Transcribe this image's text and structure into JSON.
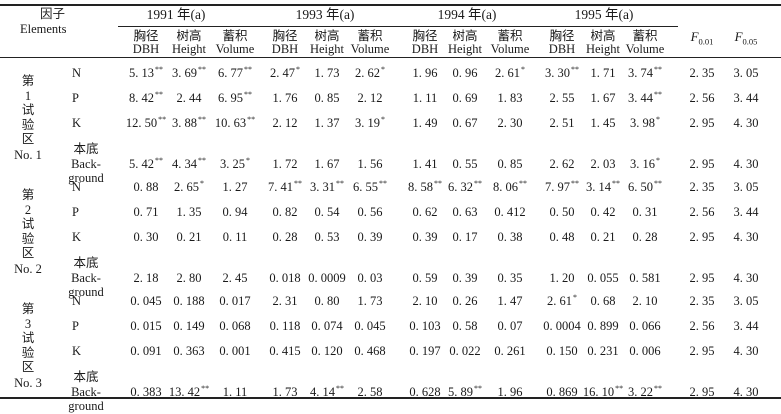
{
  "header": {
    "factor_cn": "因子",
    "factor_en": "Elements",
    "years": [
      "1991 年(a)",
      "1993 年(a)",
      "1994 年(a)",
      "1995 年(a)"
    ],
    "subcols": [
      "胸径",
      "树高",
      "蓄积"
    ],
    "subcols_en": [
      "DBH",
      "Height",
      "Volume"
    ],
    "f01": "F",
    "f01_sub": "0.01",
    "f05": "F",
    "f05_sub": "0.05"
  },
  "groups": [
    {
      "label": [
        "第",
        "1",
        "试",
        "验",
        "区",
        "No. 1"
      ],
      "rows": [
        {
          "element": "N",
          "values": [
            [
              "5. 13",
              "**"
            ],
            [
              "3. 69",
              "**"
            ],
            [
              "6. 77",
              "**"
            ],
            [
              "2. 47",
              "*"
            ],
            [
              "1. 73",
              ""
            ],
            [
              "2. 62",
              "*"
            ],
            [
              "1. 96",
              ""
            ],
            [
              "0. 96",
              ""
            ],
            [
              "2. 61",
              "*"
            ],
            [
              "3. 30",
              "**"
            ],
            [
              "1. 71",
              ""
            ],
            [
              "3. 74",
              "**"
            ]
          ],
          "f01": "2. 35",
          "f05": "3. 05"
        },
        {
          "element": "P",
          "values": [
            [
              "8. 42",
              "**"
            ],
            [
              "2. 44",
              ""
            ],
            [
              "6. 95",
              "**"
            ],
            [
              "1. 76",
              ""
            ],
            [
              "0. 85",
              ""
            ],
            [
              "2. 12",
              ""
            ],
            [
              "1. 11",
              ""
            ],
            [
              "0. 69",
              ""
            ],
            [
              "1. 83",
              ""
            ],
            [
              "2. 55",
              ""
            ],
            [
              "1. 67",
              ""
            ],
            [
              "3. 44",
              "**"
            ]
          ],
          "f01": "2. 56",
          "f05": "3. 44"
        },
        {
          "element": "K",
          "values": [
            [
              "12. 50",
              "**"
            ],
            [
              "3. 88",
              "**"
            ],
            [
              "10. 63",
              "**"
            ],
            [
              "2. 12",
              ""
            ],
            [
              "1. 37",
              ""
            ],
            [
              "3. 19",
              "*"
            ],
            [
              "1. 49",
              ""
            ],
            [
              "0. 67",
              ""
            ],
            [
              "2. 30",
              ""
            ],
            [
              "2. 51",
              ""
            ],
            [
              "1. 45",
              ""
            ],
            [
              "3. 98",
              "*"
            ]
          ],
          "f01": "2. 95",
          "f05": "4. 30"
        },
        {
          "element": "本底|Back-|ground",
          "values": [
            [
              "5. 42",
              "**"
            ],
            [
              "4. 34",
              "**"
            ],
            [
              "3. 25",
              "*"
            ],
            [
              "1. 72",
              ""
            ],
            [
              "1. 67",
              ""
            ],
            [
              "1. 56",
              ""
            ],
            [
              "1. 41",
              ""
            ],
            [
              "0. 55",
              ""
            ],
            [
              "0. 85",
              ""
            ],
            [
              "2. 62",
              ""
            ],
            [
              "2. 03",
              ""
            ],
            [
              "3. 16",
              "*"
            ]
          ],
          "f01": "2. 95",
          "f05": "4. 30"
        }
      ]
    },
    {
      "label": [
        "第",
        "2",
        "试",
        "验",
        "区",
        "No. 2"
      ],
      "rows": [
        {
          "element": "N",
          "values": [
            [
              "0. 88",
              ""
            ],
            [
              "2. 65",
              "*"
            ],
            [
              "1. 27",
              ""
            ],
            [
              "7. 41",
              "**"
            ],
            [
              "3. 31",
              "**"
            ],
            [
              "6. 55",
              "**"
            ],
            [
              "8. 58",
              "**"
            ],
            [
              "6. 32",
              "**"
            ],
            [
              "8. 06",
              "**"
            ],
            [
              "7. 97",
              "**"
            ],
            [
              "3. 14",
              "**"
            ],
            [
              "6. 50",
              "**"
            ]
          ],
          "f01": "2. 35",
          "f05": "3. 05"
        },
        {
          "element": "P",
          "values": [
            [
              "0. 71",
              ""
            ],
            [
              "1. 35",
              ""
            ],
            [
              "0. 94",
              ""
            ],
            [
              "0. 82",
              ""
            ],
            [
              "0. 54",
              ""
            ],
            [
              "0. 56",
              ""
            ],
            [
              "0. 62",
              ""
            ],
            [
              "0. 63",
              ""
            ],
            [
              "0. 412",
              ""
            ],
            [
              "0. 50",
              ""
            ],
            [
              "0. 42",
              ""
            ],
            [
              "0. 31",
              ""
            ]
          ],
          "f01": "2. 56",
          "f05": "3. 44"
        },
        {
          "element": "K",
          "values": [
            [
              "0. 30",
              ""
            ],
            [
              "0. 21",
              ""
            ],
            [
              "0. 11",
              ""
            ],
            [
              "0. 28",
              ""
            ],
            [
              "0. 53",
              ""
            ],
            [
              "0. 39",
              ""
            ],
            [
              "0. 39",
              ""
            ],
            [
              "0. 17",
              ""
            ],
            [
              "0. 38",
              ""
            ],
            [
              "0. 48",
              ""
            ],
            [
              "0. 21",
              ""
            ],
            [
              "0. 28",
              ""
            ]
          ],
          "f01": "2. 95",
          "f05": "4. 30"
        },
        {
          "element": "本底|Back-|ground",
          "values": [
            [
              "2. 18",
              ""
            ],
            [
              "2. 80",
              ""
            ],
            [
              "2. 45",
              ""
            ],
            [
              "0. 018",
              ""
            ],
            [
              "0. 0009",
              ""
            ],
            [
              "0. 03",
              ""
            ],
            [
              "0. 59",
              ""
            ],
            [
              "0. 39",
              ""
            ],
            [
              "0. 35",
              ""
            ],
            [
              "1. 20",
              ""
            ],
            [
              "0. 055",
              ""
            ],
            [
              "0. 581",
              ""
            ]
          ],
          "f01": "2. 95",
          "f05": "4. 30"
        }
      ]
    },
    {
      "label": [
        "第",
        "3",
        "试",
        "验",
        "区",
        "No. 3"
      ],
      "rows": [
        {
          "element": "N",
          "values": [
            [
              "0. 045",
              ""
            ],
            [
              "0. 188",
              ""
            ],
            [
              "0. 017",
              ""
            ],
            [
              "2. 31",
              ""
            ],
            [
              "0. 80",
              ""
            ],
            [
              "1. 73",
              ""
            ],
            [
              "2. 10",
              ""
            ],
            [
              "0. 26",
              ""
            ],
            [
              "1. 47",
              ""
            ],
            [
              "2. 61",
              "*"
            ],
            [
              "0. 68",
              ""
            ],
            [
              "2. 10",
              ""
            ]
          ],
          "f01": "2. 35",
          "f05": "3. 05"
        },
        {
          "element": "P",
          "values": [
            [
              "0. 015",
              ""
            ],
            [
              "0. 149",
              ""
            ],
            [
              "0. 068",
              ""
            ],
            [
              "0. 118",
              ""
            ],
            [
              "0. 074",
              ""
            ],
            [
              "0. 045",
              ""
            ],
            [
              "0. 103",
              ""
            ],
            [
              "0. 58",
              ""
            ],
            [
              "0. 07",
              ""
            ],
            [
              "0. 0004",
              ""
            ],
            [
              "0. 899",
              ""
            ],
            [
              "0. 066",
              ""
            ]
          ],
          "f01": "2. 56",
          "f05": "3. 44"
        },
        {
          "element": "K",
          "values": [
            [
              "0. 091",
              ""
            ],
            [
              "0. 363",
              ""
            ],
            [
              "0. 001",
              ""
            ],
            [
              "0. 415",
              ""
            ],
            [
              "0. 120",
              ""
            ],
            [
              "0. 468",
              ""
            ],
            [
              "0. 197",
              ""
            ],
            [
              "0. 022",
              ""
            ],
            [
              "0. 261",
              ""
            ],
            [
              "0. 150",
              ""
            ],
            [
              "0. 231",
              ""
            ],
            [
              "0. 006",
              ""
            ]
          ],
          "f01": "2. 95",
          "f05": "4. 30"
        },
        {
          "element": "本底|Back-|ground",
          "values": [
            [
              "0. 383",
              ""
            ],
            [
              "13. 42",
              "**"
            ],
            [
              "1. 11",
              ""
            ],
            [
              "1. 73",
              ""
            ],
            [
              "4. 14",
              "**"
            ],
            [
              "2. 58",
              ""
            ],
            [
              "0. 628",
              ""
            ],
            [
              "5. 89",
              "**"
            ],
            [
              "1. 96",
              ""
            ],
            [
              "0. 869",
              ""
            ],
            [
              "16. 10",
              "**"
            ],
            [
              "3. 22",
              "**"
            ]
          ],
          "f01": "2. 95",
          "f05": "4. 30"
        }
      ]
    }
  ]
}
